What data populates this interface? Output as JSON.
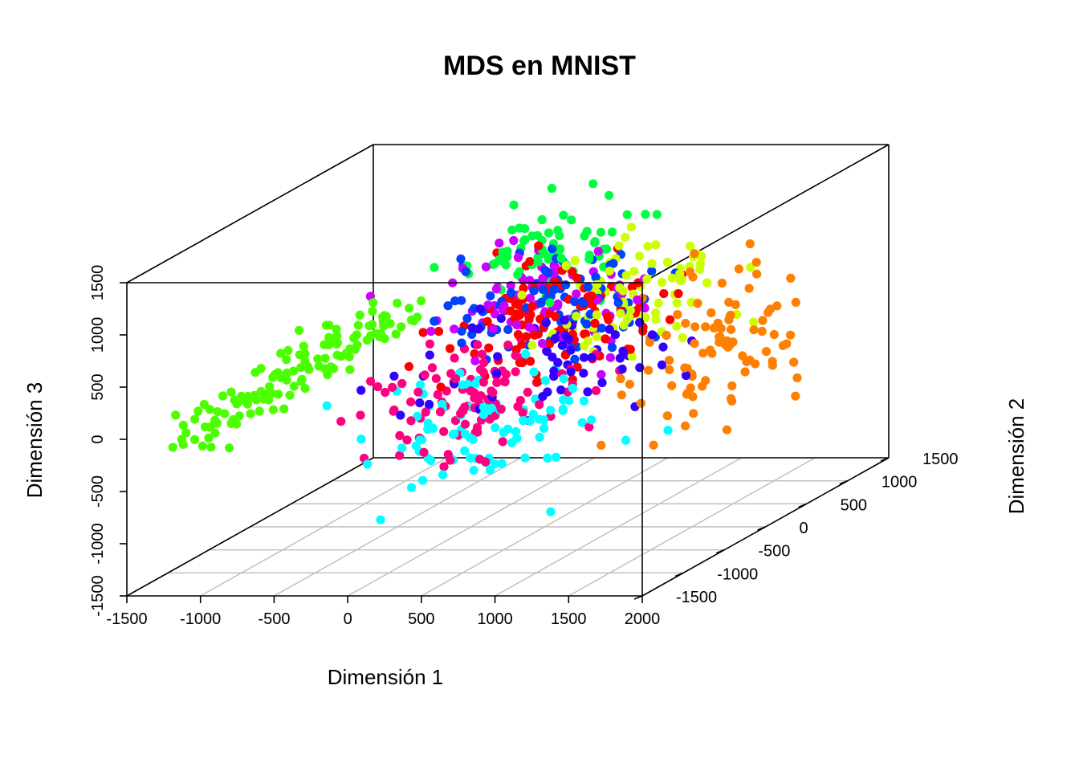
{
  "chart_data": {
    "type": "scatter",
    "title": "MDS en MNIST",
    "xlabel": "Dimensión 1",
    "ylabel": "Dimensión 2",
    "zlabel": "Dimensión 3",
    "projection": "3d-perspective",
    "xlim": [
      -1500,
      2000
    ],
    "ylim": [
      -1500,
      1500
    ],
    "zlim": [
      -1500,
      1500
    ],
    "xticks": [
      "-1500",
      "-1000",
      "-500",
      "0",
      "500",
      "1000",
      "1500",
      "2000"
    ],
    "yticks": [
      "-1500",
      "-1000",
      "-500",
      "0",
      "500",
      "1000",
      "1500"
    ],
    "zticks": [
      "-1500",
      "-1000",
      "-500",
      "0",
      "500",
      "1000",
      "1500"
    ],
    "grid": "floor",
    "legend": "none",
    "box": "full",
    "point_colors": [
      "#ff0000",
      "#ff8000",
      "#ccff00",
      "#4cff00",
      "#00ff40",
      "#00ffff",
      "#0040ff",
      "#3300ff",
      "#cc00ff",
      "#ff0080"
    ],
    "clusters": [
      {
        "color": "#4cff00",
        "count": 130,
        "center": [
          -1050,
          -400,
          350
        ],
        "spread": [
          380,
          350,
          320
        ],
        "skew": "bottom-left arc"
      },
      {
        "color": "#00ffff",
        "count": 90,
        "center": [
          450,
          -650,
          -200
        ],
        "spread": [
          650,
          500,
          480
        ]
      },
      {
        "color": "#ff0080",
        "count": 110,
        "center": [
          250,
          -450,
          -50
        ],
        "spread": [
          600,
          550,
          420
        ]
      },
      {
        "color": "#0040ff",
        "count": 90,
        "center": [
          300,
          250,
          500
        ],
        "spread": [
          650,
          500,
          450
        ]
      },
      {
        "color": "#ff0000",
        "count": 110,
        "center": [
          450,
          150,
          450
        ],
        "spread": [
          600,
          550,
          450
        ]
      },
      {
        "color": "#3300ff",
        "count": 60,
        "center": [
          750,
          -250,
          200
        ],
        "spread": [
          700,
          500,
          450
        ]
      },
      {
        "color": "#cc00ff",
        "count": 75,
        "center": [
          350,
          200,
          550
        ],
        "spread": [
          600,
          550,
          450
        ]
      },
      {
        "color": "#00ff40",
        "count": 70,
        "center": [
          200,
          550,
          900
        ],
        "spread": [
          550,
          400,
          350
        ]
      },
      {
        "color": "#ccff00",
        "count": 80,
        "center": [
          950,
          300,
          600
        ],
        "spread": [
          550,
          450,
          450
        ]
      },
      {
        "color": "#ff8000",
        "count": 90,
        "center": [
          1600,
          0,
          200
        ],
        "spread": [
          450,
          600,
          650
        ]
      }
    ]
  }
}
